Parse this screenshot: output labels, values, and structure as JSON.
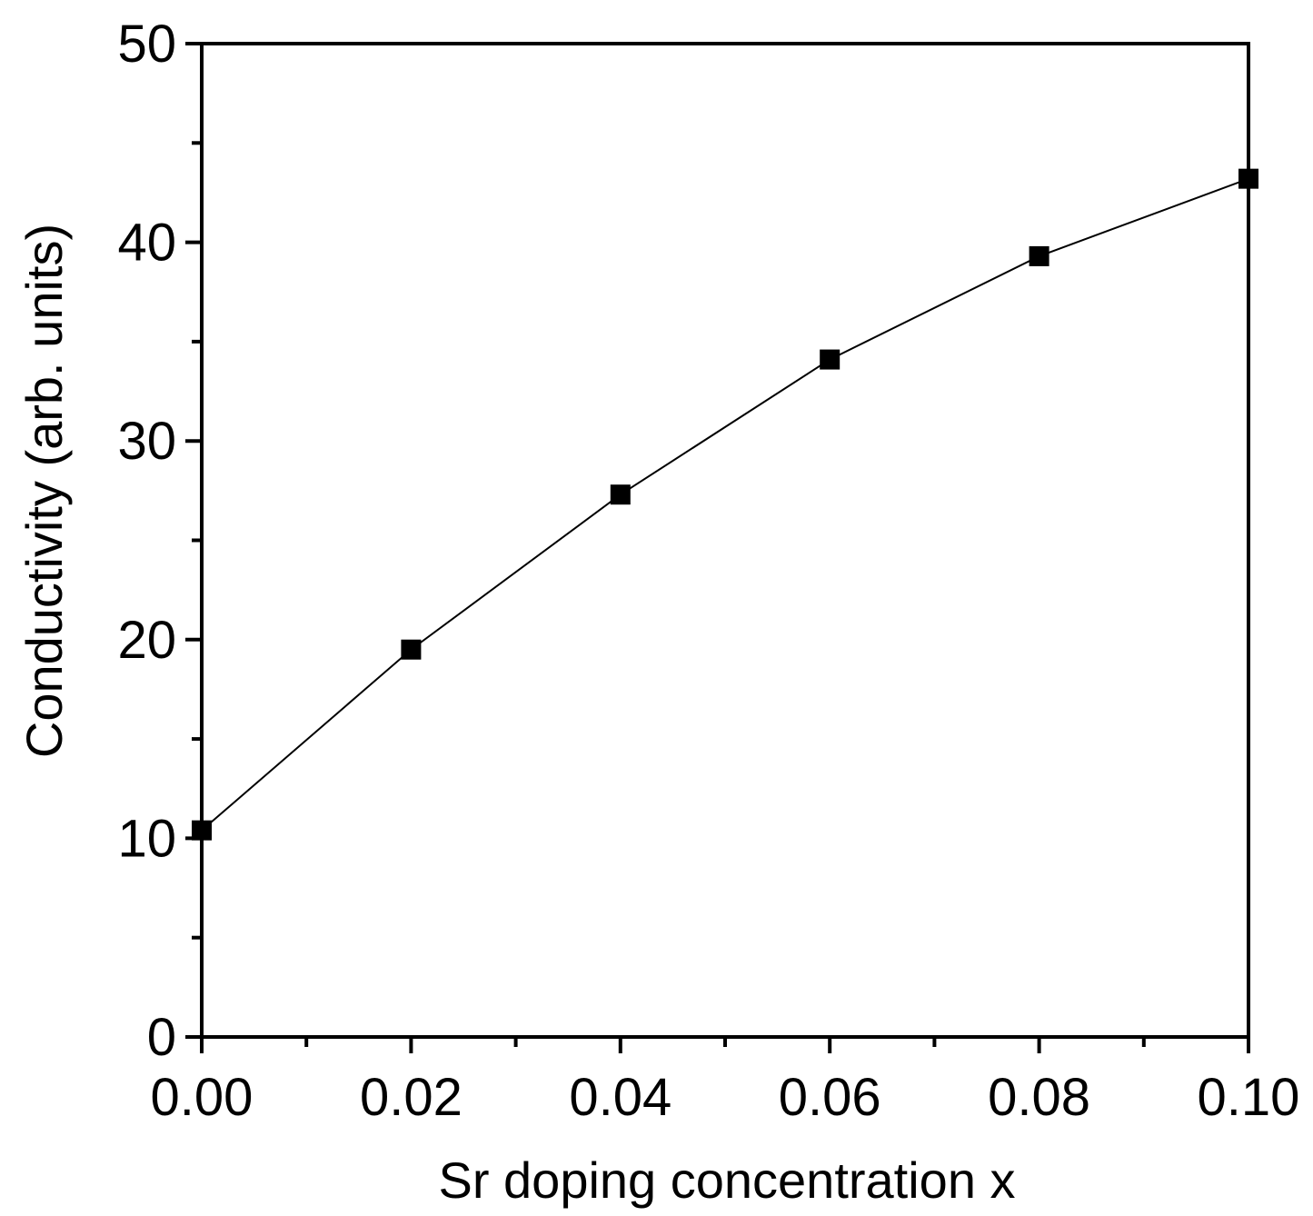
{
  "chart_data": {
    "type": "line",
    "title": "",
    "xlabel": "Sr doping concentration x",
    "ylabel": "Conductivity (arb. units)",
    "xlim": [
      0.0,
      0.1
    ],
    "ylim": [
      0,
      50
    ],
    "x_ticks": [
      "0.00",
      "0.02",
      "0.04",
      "0.06",
      "0.08",
      "0.10"
    ],
    "y_ticks": [
      "0",
      "10",
      "20",
      "30",
      "40",
      "50"
    ],
    "grid": false,
    "legend": "none",
    "marker": "square",
    "series": [
      {
        "color": "#000000",
        "x": [
          0.0,
          0.02,
          0.04,
          0.06,
          0.08,
          0.1
        ],
        "y": [
          10.4,
          19.5,
          27.3,
          34.1,
          39.3,
          43.2
        ]
      }
    ]
  }
}
